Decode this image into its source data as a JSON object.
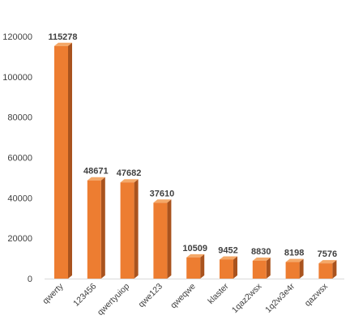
{
  "chart_data": {
    "type": "bar",
    "style": "3d-column",
    "title": "",
    "xlabel": "",
    "ylabel": "",
    "categories": [
      "qwerty",
      "123456",
      "qwertyuiop",
      "qwe123",
      "qweqwe",
      "klaster",
      "1qaz2wsx",
      "1q2w3e4r",
      "qazwsx"
    ],
    "values": [
      115278,
      48671,
      47682,
      37610,
      10509,
      9452,
      8830,
      8198,
      7576
    ],
    "data_labels": [
      "115278",
      "48671",
      "47682",
      "37610",
      "10509",
      "9452",
      "8830",
      "8198",
      "7576"
    ],
    "ylim": [
      0,
      120000
    ],
    "yticks": [
      0,
      20000,
      40000,
      60000,
      80000,
      100000,
      120000
    ],
    "ytick_labels": [
      "0",
      "20000",
      "40000",
      "60000",
      "80000",
      "100000",
      "120000"
    ],
    "grid": false,
    "legend": "none",
    "colors": {
      "bar_front": "#ED7D31",
      "bar_side": "#A9531E",
      "bar_top": "#F4A868",
      "text": "#404040",
      "axis": "#d9d9d9"
    }
  }
}
